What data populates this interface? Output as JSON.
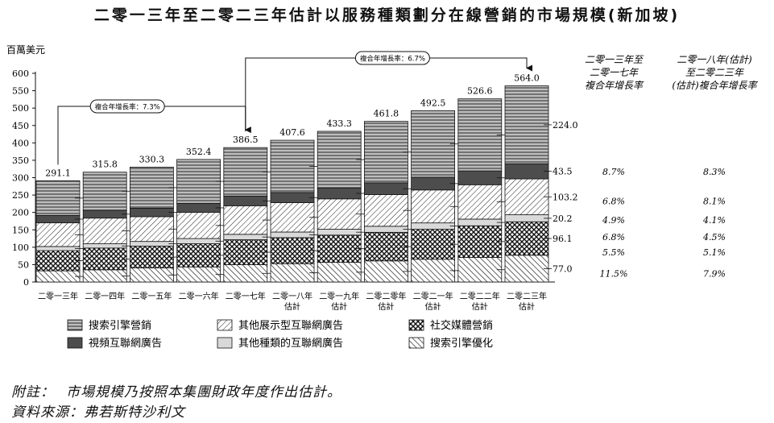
{
  "title": "二零一三年至二零二三年估計以服務種類劃分在線營銷的市場規模(新加坡)",
  "chart_data": {
    "type": "bar",
    "stacked": true,
    "ylabel": "百萬美元",
    "ylim": [
      0,
      600
    ],
    "yticks": [
      0,
      50,
      100,
      150,
      200,
      250,
      300,
      350,
      400,
      450,
      500,
      550,
      600
    ],
    "categories": [
      [
        "二零一三年"
      ],
      [
        "二零一四年"
      ],
      [
        "二零一五年"
      ],
      [
        "二零一六年"
      ],
      [
        "二零一七年"
      ],
      [
        "二零一八年",
        "估計"
      ],
      [
        "二零一九年",
        "估計"
      ],
      [
        "二零二零年",
        "估計"
      ],
      [
        "二零二一年",
        "估計"
      ],
      [
        "二零二二年",
        "估計"
      ],
      [
        "二零二三年",
        "估計"
      ]
    ],
    "totals": [
      "291.1",
      "315.8",
      "330.3",
      "352.4",
      "386.5",
      "407.6",
      "433.3",
      "461.8",
      "492.5",
      "526.6",
      "564.0"
    ],
    "series": [
      {
        "name": "搜索引擎優化",
        "pattern": "seo-backslash",
        "values": [
          32.1,
          35.1,
          40.3,
          43.4,
          49.7,
          52.7,
          56.5,
          60.7,
          65.4,
          70.8,
          77.0
        ]
      },
      {
        "name": "社交媒體營銷",
        "pattern": "crosshatch",
        "values": [
          58.0,
          62.5,
          62.8,
          66.6,
          71.8,
          74.8,
          78.3,
          82.1,
          86.2,
          90.8,
          96.1
        ]
      },
      {
        "name": "其他種類的互聯網廣告",
        "pattern": "light-gray",
        "values": [
          12.0,
          12.3,
          13.5,
          15.0,
          15.6,
          16.2,
          16.8,
          17.5,
          18.3,
          19.2,
          20.2
        ]
      },
      {
        "name": "其他展示型互聯網廣告",
        "pattern": "slash",
        "values": [
          67.9,
          73.8,
          71.2,
          75.1,
          82.1,
          84.3,
          87.4,
          90.9,
          94.7,
          98.8,
          103.2
        ]
      },
      {
        "name": "視頻互聯網廣告",
        "pattern": "dark-gray",
        "values": [
          21.5,
          22.8,
          24.5,
          26.2,
          28.0,
          29.5,
          31.6,
          34.0,
          36.7,
          39.8,
          43.5
        ]
      },
      {
        "name": "搜索引擎營銷",
        "pattern": "horizontal",
        "values": [
          99.6,
          109.3,
          118.0,
          126.1,
          139.3,
          150.1,
          162.7,
          176.6,
          191.2,
          207.2,
          224.0
        ]
      }
    ],
    "cagr_annotations": [
      {
        "label": "複合年增長率：7.3%",
        "from": "二零一三年",
        "to": "二零一七年"
      },
      {
        "label": "複合年增長率：6.7%",
        "from": "二零一七年",
        "to": "二零二三年"
      }
    ],
    "legend": {
      "placement": "bottom",
      "order": [
        "搜索引擎營銷",
        "其他展示型互聯網廣告",
        "社交媒體營銷",
        "視頻互聯網廣告",
        "其他種類的互聯網廣告",
        "搜索引擎優化"
      ]
    },
    "cagr_table": {
      "headers": [
        [
          "二零一三年至",
          "二零一七年",
          "複合年增長率"
        ],
        [
          "二零一八年(估計)",
          "至二零二三年",
          "(估計)複合年增長率"
        ]
      ],
      "rows": [
        {
          "series": "搜索引擎營銷",
          "values": [
            "8.7%",
            "8.3%"
          ]
        },
        {
          "series": "視頻互聯網廣告",
          "values": [
            "6.8%",
            "8.1%"
          ]
        },
        {
          "series": "其他展示型互聯網廣告",
          "values": [
            "4.9%",
            "4.1%"
          ]
        },
        {
          "series": "其他種類的互聯網廣告",
          "values": [
            "6.8%",
            "4.5%"
          ]
        },
        {
          "series": "社交媒體營銷",
          "values": [
            "5.5%",
            "5.1%"
          ]
        },
        {
          "series": "搜索引擎優化",
          "values": [
            "11.5%",
            "7.9%"
          ]
        }
      ]
    }
  },
  "notes": {
    "note_label": "附註：",
    "note_text": "市場規模乃按照本集團財政年度作出估計。",
    "source_label": "資料來源：",
    "source_text": "弗若斯特沙利文"
  }
}
